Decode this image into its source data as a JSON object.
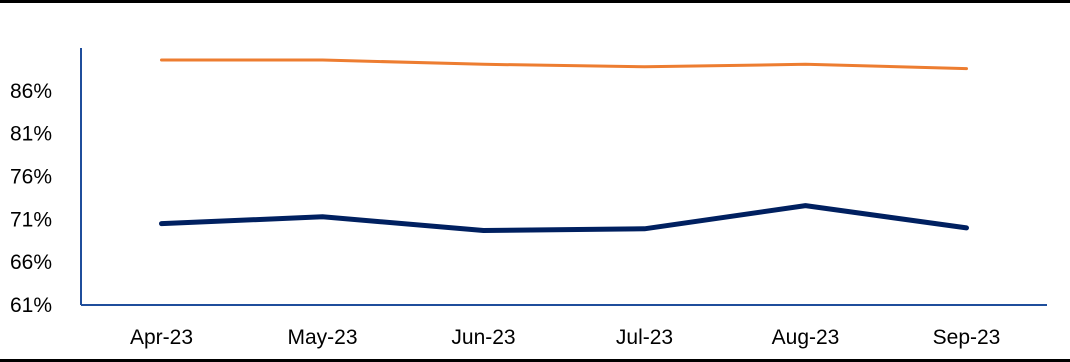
{
  "chart_data": {
    "type": "line",
    "categories": [
      "Apr-23",
      "May-23",
      "Jun-23",
      "Jul-23",
      "Aug-23",
      "Sep-23"
    ],
    "series": [
      {
        "values": [
          89.6,
          89.6,
          89.1,
          88.8,
          89.1,
          88.6
        ],
        "color": "#ED7D31"
      },
      {
        "values": [
          70.5,
          71.3,
          69.7,
          69.9,
          72.6,
          70.0
        ],
        "color": "#002060"
      }
    ],
    "y_ticks": [
      "61%",
      "66%",
      "71%",
      "76%",
      "81%",
      "86%"
    ],
    "ylim": [
      61,
      91
    ],
    "tick_step": 5,
    "grid": false,
    "legend": "none",
    "axis_color": "#1F4E9C",
    "border_color": "#000000"
  }
}
